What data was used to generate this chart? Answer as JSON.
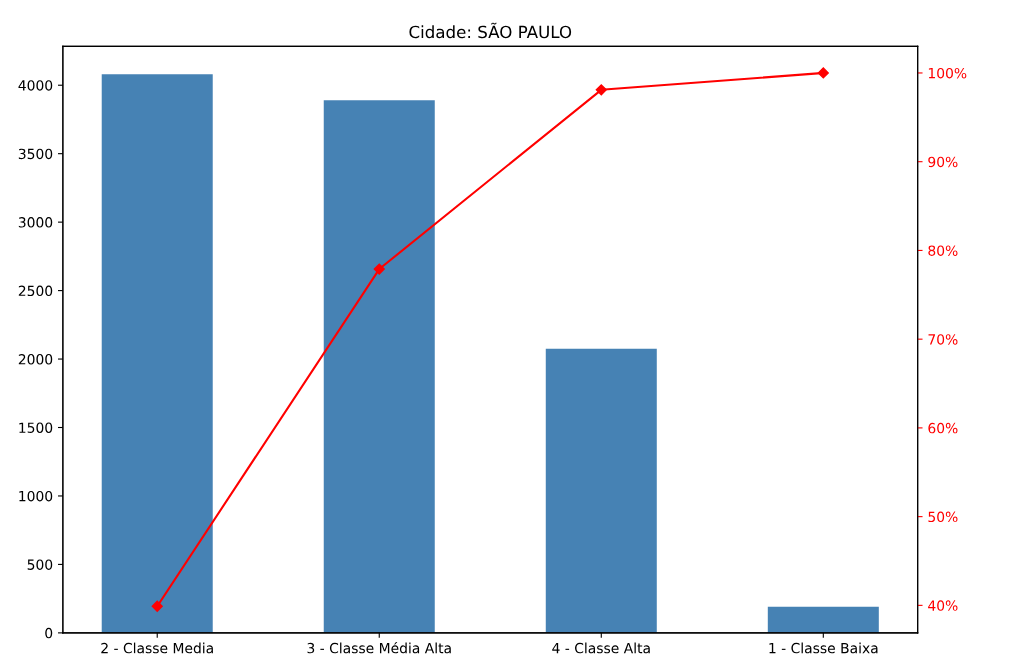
{
  "chart_data": {
    "type": "bar",
    "title": "Cidade: SÃO PAULO",
    "categories": [
      "2 - Classe Media",
      "3 - Classe Média Alta",
      "4 - Classe Alta",
      "1 - Classe Baixa"
    ],
    "series": [
      {
        "color": "#4682b4",
        "values": [
          4080,
          3890,
          2075,
          190
        ]
      },
      {
        "type": "line",
        "axis": "y2",
        "color": "#ff0000",
        "marker": "diamond",
        "values": [
          39.9,
          77.9,
          98.1,
          100
        ]
      }
    ],
    "ylim": [
      0,
      4284
    ],
    "yticks": [
      0,
      500,
      1000,
      1500,
      2000,
      2500,
      3000,
      3500,
      4000
    ],
    "y2lim": [
      36.9,
      103.0
    ],
    "y2ticks": [
      {
        "value": 40,
        "label": "40%"
      },
      {
        "value": 50,
        "label": "50%"
      },
      {
        "value": 60,
        "label": "60%"
      },
      {
        "value": 70,
        "label": "70%"
      },
      {
        "value": 80,
        "label": "80%"
      },
      {
        "value": 90,
        "label": "90%"
      },
      {
        "value": 100,
        "label": "100%"
      }
    ],
    "grid": false,
    "legend": false
  }
}
